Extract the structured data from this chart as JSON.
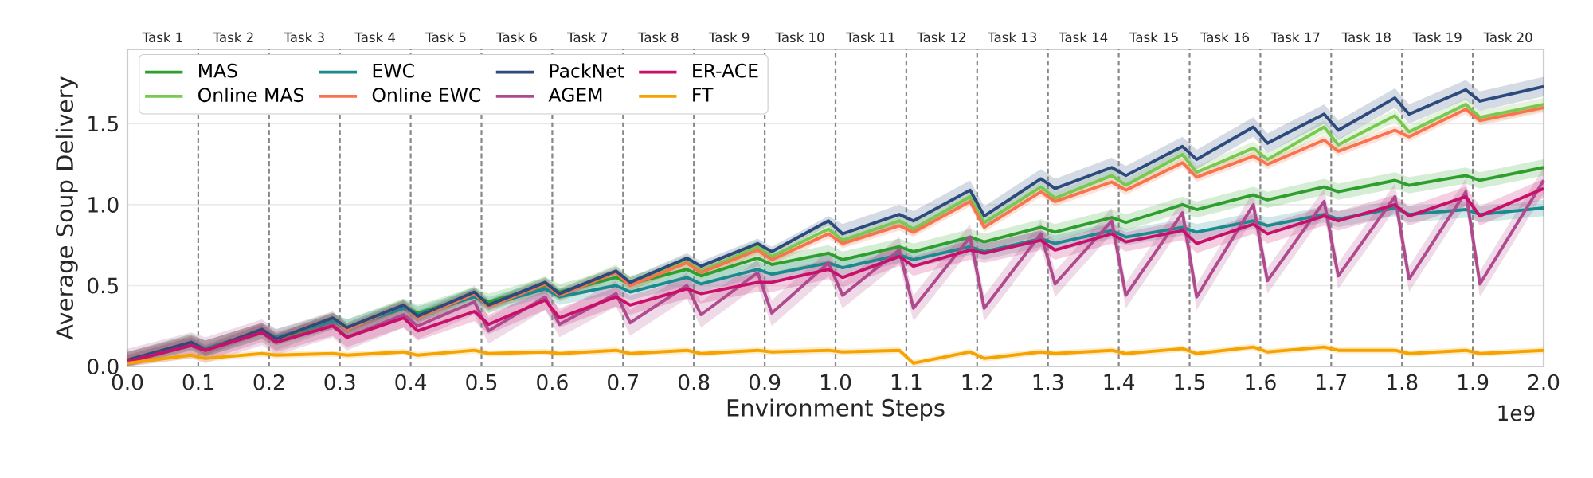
{
  "chart_data": {
    "type": "line",
    "xlabel": "Environment Steps",
    "ylabel": "Average Soup Delivery",
    "annotations": [
      "1e9",
      "Task 1",
      "Task 2",
      "Task 3",
      "Task 4",
      "Task 5",
      "Task 6",
      "Task 7",
      "Task 8",
      "Task 9",
      "Task 10",
      "Task 11",
      "Task 12",
      "Task 13",
      "Task 14",
      "Task 15",
      "Task 16",
      "Task 17",
      "Task 18",
      "Task 19",
      "Task 20"
    ],
    "x": [
      0.0,
      0.09,
      0.11,
      0.19,
      0.21,
      0.29,
      0.31,
      0.39,
      0.41,
      0.49,
      0.51,
      0.59,
      0.61,
      0.69,
      0.71,
      0.79,
      0.81,
      0.89,
      0.91,
      0.99,
      1.01,
      1.09,
      1.11,
      1.19,
      1.21,
      1.29,
      1.31,
      1.39,
      1.41,
      1.49,
      1.51,
      1.59,
      1.61,
      1.69,
      1.71,
      1.79,
      1.81,
      1.89,
      1.91,
      2.0
    ],
    "series": [
      {
        "name": "MAS",
        "color": "#2e9e2e",
        "values": [
          null,
          null,
          null,
          0.22,
          0.15,
          0.28,
          0.24,
          0.37,
          0.33,
          0.44,
          0.4,
          0.5,
          0.46,
          0.55,
          0.51,
          0.6,
          0.56,
          0.67,
          0.63,
          0.7,
          0.66,
          0.74,
          0.71,
          0.8,
          0.77,
          0.86,
          0.83,
          0.92,
          0.89,
          1.0,
          0.97,
          1.06,
          1.03,
          1.11,
          1.08,
          1.15,
          1.12,
          1.18,
          1.15,
          1.23
        ],
        "lower": [
          0.0,
          0.1,
          0.06,
          0.17,
          0.1,
          0.23,
          0.19,
          0.32,
          0.28,
          0.39,
          0.35,
          0.45,
          0.41,
          0.5,
          0.46,
          0.55,
          0.51,
          0.62,
          0.58,
          0.65,
          0.61,
          0.69,
          0.66,
          0.75,
          0.72,
          0.81,
          0.78,
          0.87,
          0.84,
          0.95,
          0.92,
          1.01,
          0.98,
          1.06,
          1.03,
          1.1,
          1.07,
          1.13,
          1.1,
          1.18
        ],
        "upper": [
          0.09,
          0.2,
          0.16,
          0.27,
          0.2,
          0.33,
          0.29,
          0.42,
          0.38,
          0.49,
          0.45,
          0.55,
          0.51,
          0.6,
          0.56,
          0.65,
          0.61,
          0.72,
          0.68,
          0.75,
          0.71,
          0.79,
          0.76,
          0.85,
          0.82,
          0.91,
          0.88,
          0.97,
          0.94,
          1.05,
          1.02,
          1.11,
          1.08,
          1.16,
          1.13,
          1.2,
          1.17,
          1.23,
          1.2,
          1.28
        ]
      },
      {
        "name": "Online MAS",
        "color": "#77c94f",
        "values": [
          null,
          null,
          null,
          null,
          0.17,
          0.3,
          0.23,
          0.38,
          0.31,
          0.46,
          0.37,
          0.52,
          0.44,
          0.59,
          0.51,
          0.65,
          0.59,
          0.74,
          0.68,
          0.85,
          0.78,
          0.9,
          0.85,
          1.05,
          0.89,
          1.11,
          1.04,
          1.18,
          1.12,
          1.31,
          1.2,
          1.35,
          1.28,
          1.48,
          1.37,
          1.55,
          1.45,
          1.62,
          1.54,
          1.62
        ],
        "lower": [
          0.0,
          0.11,
          0.06,
          0.19,
          0.13,
          0.26,
          0.19,
          0.34,
          0.27,
          0.42,
          0.33,
          0.48,
          0.4,
          0.55,
          0.47,
          0.61,
          0.55,
          0.7,
          0.64,
          0.81,
          0.74,
          0.86,
          0.81,
          1.01,
          0.85,
          1.07,
          1.0,
          1.14,
          1.08,
          1.27,
          1.16,
          1.31,
          1.24,
          1.44,
          1.33,
          1.51,
          1.41,
          1.58,
          1.5,
          1.58
        ],
        "upper": [
          0.08,
          0.19,
          0.14,
          0.27,
          0.21,
          0.34,
          0.27,
          0.42,
          0.35,
          0.5,
          0.41,
          0.56,
          0.48,
          0.63,
          0.55,
          0.69,
          0.63,
          0.78,
          0.72,
          0.89,
          0.82,
          0.94,
          0.89,
          1.09,
          0.93,
          1.15,
          1.08,
          1.22,
          1.16,
          1.35,
          1.24,
          1.39,
          1.32,
          1.52,
          1.41,
          1.59,
          1.49,
          1.66,
          1.58,
          1.66
        ]
      },
      {
        "name": "EWC",
        "color": "#1b8a8f",
        "values": [
          0.04,
          0.15,
          0.11,
          0.22,
          0.18,
          0.28,
          0.24,
          0.36,
          0.32,
          0.43,
          0.38,
          0.48,
          0.43,
          0.5,
          0.46,
          0.55,
          0.51,
          0.6,
          0.57,
          0.64,
          0.61,
          0.69,
          0.66,
          0.74,
          0.71,
          0.79,
          0.76,
          0.84,
          0.8,
          0.86,
          0.83,
          0.9,
          0.87,
          0.94,
          0.91,
          0.98,
          0.94,
          0.97,
          0.94,
          0.98
        ],
        "lower": [
          0.0,
          0.1,
          0.06,
          0.17,
          0.13,
          0.23,
          0.19,
          0.31,
          0.27,
          0.38,
          0.33,
          0.43,
          0.38,
          0.45,
          0.41,
          0.5,
          0.46,
          0.55,
          0.52,
          0.59,
          0.56,
          0.64,
          0.61,
          0.69,
          0.66,
          0.74,
          0.71,
          0.79,
          0.75,
          0.81,
          0.78,
          0.85,
          0.82,
          0.89,
          0.86,
          0.93,
          0.89,
          0.92,
          0.89,
          0.93
        ],
        "upper": [
          0.09,
          0.2,
          0.16,
          0.27,
          0.23,
          0.33,
          0.29,
          0.41,
          0.37,
          0.48,
          0.43,
          0.53,
          0.48,
          0.55,
          0.51,
          0.6,
          0.56,
          0.65,
          0.62,
          0.69,
          0.66,
          0.74,
          0.71,
          0.79,
          0.76,
          0.84,
          0.81,
          0.89,
          0.85,
          0.91,
          0.88,
          0.95,
          0.92,
          0.99,
          0.96,
          1.03,
          0.99,
          1.02,
          0.99,
          1.03
        ]
      },
      {
        "name": "Online EWC",
        "color": "#f8734e",
        "values": [
          0.04,
          0.15,
          0.1,
          0.23,
          0.17,
          0.3,
          0.23,
          0.38,
          0.3,
          0.45,
          0.37,
          0.51,
          0.44,
          0.58,
          0.5,
          0.64,
          0.58,
          0.72,
          0.66,
          0.82,
          0.76,
          0.87,
          0.83,
          1.02,
          0.86,
          1.08,
          1.02,
          1.14,
          1.09,
          1.26,
          1.17,
          1.3,
          1.25,
          1.4,
          1.33,
          1.46,
          1.42,
          1.59,
          1.52,
          1.6
        ],
        "lower": [
          0.01,
          0.12,
          0.07,
          0.2,
          0.14,
          0.27,
          0.2,
          0.35,
          0.27,
          0.42,
          0.34,
          0.48,
          0.41,
          0.55,
          0.47,
          0.61,
          0.55,
          0.69,
          0.63,
          0.79,
          0.73,
          0.84,
          0.8,
          0.99,
          0.83,
          1.05,
          0.99,
          1.11,
          1.06,
          1.23,
          1.14,
          1.27,
          1.22,
          1.37,
          1.3,
          1.43,
          1.39,
          1.56,
          1.49,
          1.57
        ],
        "upper": [
          0.07,
          0.18,
          0.13,
          0.26,
          0.2,
          0.33,
          0.26,
          0.41,
          0.33,
          0.48,
          0.4,
          0.54,
          0.47,
          0.61,
          0.53,
          0.67,
          0.61,
          0.75,
          0.69,
          0.85,
          0.79,
          0.9,
          0.86,
          1.05,
          0.89,
          1.11,
          1.05,
          1.17,
          1.12,
          1.29,
          1.2,
          1.33,
          1.28,
          1.43,
          1.36,
          1.49,
          1.45,
          1.62,
          1.55,
          1.63
        ]
      },
      {
        "name": "PackNet",
        "color": "#2d4a7c",
        "values": [
          0.04,
          0.15,
          0.1,
          0.23,
          0.17,
          0.3,
          0.24,
          0.38,
          0.31,
          0.46,
          0.38,
          0.52,
          0.45,
          0.59,
          0.52,
          0.67,
          0.62,
          0.76,
          0.71,
          0.9,
          0.82,
          0.94,
          0.9,
          1.09,
          0.93,
          1.16,
          1.1,
          1.23,
          1.18,
          1.36,
          1.28,
          1.48,
          1.38,
          1.56,
          1.46,
          1.66,
          1.56,
          1.71,
          1.64,
          1.73
        ],
        "lower": [
          0.01,
          0.12,
          0.07,
          0.2,
          0.14,
          0.27,
          0.21,
          0.35,
          0.28,
          0.43,
          0.35,
          0.49,
          0.42,
          0.56,
          0.49,
          0.64,
          0.59,
          0.73,
          0.68,
          0.87,
          0.76,
          0.88,
          0.84,
          1.03,
          0.87,
          1.1,
          1.04,
          1.17,
          1.12,
          1.3,
          1.22,
          1.42,
          1.32,
          1.5,
          1.4,
          1.6,
          1.5,
          1.65,
          1.58,
          1.67
        ],
        "upper": [
          0.07,
          0.18,
          0.13,
          0.26,
          0.2,
          0.33,
          0.27,
          0.41,
          0.34,
          0.49,
          0.41,
          0.55,
          0.48,
          0.62,
          0.55,
          0.7,
          0.65,
          0.79,
          0.74,
          0.93,
          0.88,
          1.0,
          0.96,
          1.15,
          0.99,
          1.22,
          1.16,
          1.29,
          1.24,
          1.42,
          1.34,
          1.54,
          1.44,
          1.62,
          1.52,
          1.72,
          1.62,
          1.77,
          1.7,
          1.79
        ]
      },
      {
        "name": "AGEM",
        "color": "#b04a8e",
        "values": [
          0.03,
          0.13,
          0.1,
          0.21,
          0.15,
          0.26,
          0.18,
          0.32,
          0.25,
          0.4,
          0.22,
          0.43,
          0.26,
          0.45,
          0.27,
          0.5,
          0.32,
          0.58,
          0.33,
          0.64,
          0.44,
          0.72,
          0.36,
          0.8,
          0.36,
          0.82,
          0.51,
          0.9,
          0.44,
          0.95,
          0.43,
          1.0,
          0.53,
          1.02,
          0.56,
          1.05,
          0.54,
          1.08,
          0.51,
          1.15
        ],
        "lower": [
          0.0,
          0.05,
          0.02,
          0.13,
          0.07,
          0.18,
          0.1,
          0.24,
          0.17,
          0.32,
          0.14,
          0.35,
          0.18,
          0.37,
          0.19,
          0.42,
          0.24,
          0.5,
          0.25,
          0.56,
          0.36,
          0.64,
          0.28,
          0.72,
          0.28,
          0.74,
          0.43,
          0.82,
          0.36,
          0.87,
          0.35,
          0.92,
          0.45,
          0.94,
          0.48,
          0.97,
          0.46,
          1.0,
          0.43,
          1.07
        ],
        "upper": [
          0.11,
          0.21,
          0.18,
          0.29,
          0.23,
          0.34,
          0.26,
          0.4,
          0.33,
          0.48,
          0.3,
          0.51,
          0.34,
          0.53,
          0.35,
          0.58,
          0.4,
          0.66,
          0.41,
          0.72,
          0.52,
          0.8,
          0.44,
          0.88,
          0.44,
          0.9,
          0.59,
          0.98,
          0.52,
          1.03,
          0.51,
          1.08,
          0.61,
          1.1,
          0.64,
          1.13,
          0.62,
          1.16,
          0.59,
          1.23
        ]
      },
      {
        "name": "ER-ACE",
        "color": "#c8106a",
        "values": [
          0.03,
          0.13,
          0.1,
          0.21,
          0.15,
          0.25,
          0.18,
          0.3,
          0.22,
          0.34,
          0.26,
          0.41,
          0.3,
          0.43,
          0.38,
          0.48,
          0.45,
          0.52,
          0.52,
          0.6,
          0.55,
          0.68,
          0.62,
          0.72,
          0.7,
          0.78,
          0.72,
          0.82,
          0.77,
          0.84,
          0.76,
          0.88,
          0.82,
          0.93,
          0.9,
          1.0,
          0.93,
          1.05,
          0.93,
          1.1
        ],
        "lower": [
          0.0,
          0.07,
          0.04,
          0.15,
          0.09,
          0.19,
          0.12,
          0.24,
          0.16,
          0.28,
          0.2,
          0.35,
          0.24,
          0.37,
          0.32,
          0.42,
          0.39,
          0.46,
          0.46,
          0.54,
          0.49,
          0.62,
          0.56,
          0.66,
          0.64,
          0.72,
          0.66,
          0.76,
          0.71,
          0.78,
          0.7,
          0.82,
          0.76,
          0.87,
          0.84,
          0.94,
          0.87,
          0.99,
          0.87,
          1.04
        ],
        "upper": [
          0.09,
          0.19,
          0.16,
          0.27,
          0.21,
          0.31,
          0.24,
          0.36,
          0.28,
          0.4,
          0.32,
          0.47,
          0.36,
          0.49,
          0.44,
          0.54,
          0.51,
          0.58,
          0.58,
          0.66,
          0.61,
          0.74,
          0.68,
          0.78,
          0.76,
          0.84,
          0.78,
          0.88,
          0.83,
          0.9,
          0.82,
          0.94,
          0.88,
          0.99,
          0.96,
          1.06,
          0.99,
          1.11,
          0.99,
          1.16
        ]
      },
      {
        "name": "FT",
        "color": "#f5a300",
        "values": [
          0.02,
          0.07,
          0.05,
          0.08,
          0.07,
          0.08,
          0.07,
          0.09,
          0.07,
          0.1,
          0.08,
          0.09,
          0.08,
          0.1,
          0.08,
          0.1,
          0.08,
          0.1,
          0.09,
          0.1,
          0.09,
          0.1,
          0.02,
          0.09,
          0.05,
          0.09,
          0.08,
          0.1,
          0.08,
          0.11,
          0.08,
          0.12,
          0.09,
          0.12,
          0.1,
          0.1,
          0.08,
          0.1,
          0.08,
          0.1
        ],
        "lower": [
          0.0,
          0.05,
          0.03,
          0.06,
          0.05,
          0.06,
          0.05,
          0.07,
          0.05,
          0.08,
          0.06,
          0.07,
          0.06,
          0.08,
          0.06,
          0.08,
          0.06,
          0.08,
          0.07,
          0.08,
          0.07,
          0.08,
          0.0,
          0.07,
          0.03,
          0.07,
          0.06,
          0.08,
          0.06,
          0.09,
          0.06,
          0.1,
          0.07,
          0.1,
          0.08,
          0.08,
          0.06,
          0.08,
          0.06,
          0.08
        ],
        "upper": [
          0.04,
          0.09,
          0.07,
          0.1,
          0.09,
          0.1,
          0.09,
          0.11,
          0.09,
          0.12,
          0.1,
          0.11,
          0.1,
          0.12,
          0.1,
          0.12,
          0.1,
          0.12,
          0.11,
          0.12,
          0.11,
          0.12,
          0.04,
          0.11,
          0.07,
          0.11,
          0.1,
          0.12,
          0.1,
          0.13,
          0.1,
          0.14,
          0.11,
          0.14,
          0.12,
          0.12,
          0.1,
          0.12,
          0.1,
          0.12
        ]
      }
    ],
    "xlim": [
      0,
      2.0
    ],
    "xticks": [
      {
        "value": 0,
        "label": "0.0"
      },
      {
        "value": 0.1,
        "label": "0.1"
      },
      {
        "value": 0.2,
        "label": "0.2"
      },
      {
        "value": 0.3,
        "label": "0.3"
      },
      {
        "value": 0.4,
        "label": "0.4"
      },
      {
        "value": 0.5,
        "label": "0.5"
      },
      {
        "value": 0.6,
        "label": "0.6"
      },
      {
        "value": 0.7,
        "label": "0.7"
      },
      {
        "value": 0.8,
        "label": "0.8"
      },
      {
        "value": 0.9,
        "label": "0.9"
      },
      {
        "value": 1.0,
        "label": "1.0"
      },
      {
        "value": 1.1,
        "label": "1.1"
      },
      {
        "value": 1.2,
        "label": "1.2"
      },
      {
        "value": 1.3,
        "label": "1.3"
      },
      {
        "value": 1.4,
        "label": "1.4"
      },
      {
        "value": 1.5,
        "label": "1.5"
      },
      {
        "value": 1.6,
        "label": "1.6"
      },
      {
        "value": 1.7,
        "label": "1.7"
      },
      {
        "value": 1.8,
        "label": "1.8"
      },
      {
        "value": 1.9,
        "label": "1.9"
      },
      {
        "value": 2.0,
        "label": "2.0"
      }
    ],
    "ylim": [
      0,
      1.96
    ],
    "yticks": [
      {
        "value": 0,
        "label": "0.0"
      },
      {
        "value": 0.5,
        "label": "0.5"
      },
      {
        "value": 1.0,
        "label": "1.0"
      },
      {
        "value": 1.5,
        "label": "1.5"
      }
    ],
    "ref_lines": [
      {
        "axis": "x",
        "value": 0.1,
        "line_style": "dashed",
        "color": "#888888"
      },
      {
        "axis": "x",
        "value": 0.2,
        "line_style": "dashed",
        "color": "#888888"
      },
      {
        "axis": "x",
        "value": 0.3,
        "line_style": "dashed",
        "color": "#888888"
      },
      {
        "axis": "x",
        "value": 0.4,
        "line_style": "dashed",
        "color": "#888888"
      },
      {
        "axis": "x",
        "value": 0.5,
        "line_style": "dashed",
        "color": "#888888"
      },
      {
        "axis": "x",
        "value": 0.6,
        "line_style": "dashed",
        "color": "#888888"
      },
      {
        "axis": "x",
        "value": 0.7,
        "line_style": "dashed",
        "color": "#888888"
      },
      {
        "axis": "x",
        "value": 0.8,
        "line_style": "dashed",
        "color": "#888888"
      },
      {
        "axis": "x",
        "value": 0.9,
        "line_style": "dashed",
        "color": "#888888"
      },
      {
        "axis": "x",
        "value": 1.0,
        "line_style": "dashed",
        "color": "#888888"
      },
      {
        "axis": "x",
        "value": 1.1,
        "line_style": "dashed",
        "color": "#888888"
      },
      {
        "axis": "x",
        "value": 1.2,
        "line_style": "dashed",
        "color": "#888888"
      },
      {
        "axis": "x",
        "value": 1.3,
        "line_style": "dashed",
        "color": "#888888"
      },
      {
        "axis": "x",
        "value": 1.4,
        "line_style": "dashed",
        "color": "#888888"
      },
      {
        "axis": "x",
        "value": 1.5,
        "line_style": "dashed",
        "color": "#888888"
      },
      {
        "axis": "x",
        "value": 1.6,
        "line_style": "dashed",
        "color": "#888888"
      },
      {
        "axis": "x",
        "value": 1.7,
        "line_style": "dashed",
        "color": "#888888"
      },
      {
        "axis": "x",
        "value": 1.8,
        "line_style": "dashed",
        "color": "#888888"
      },
      {
        "axis": "x",
        "value": 1.9,
        "line_style": "dashed",
        "color": "#888888"
      }
    ],
    "grid": "y",
    "legend": "top left"
  }
}
